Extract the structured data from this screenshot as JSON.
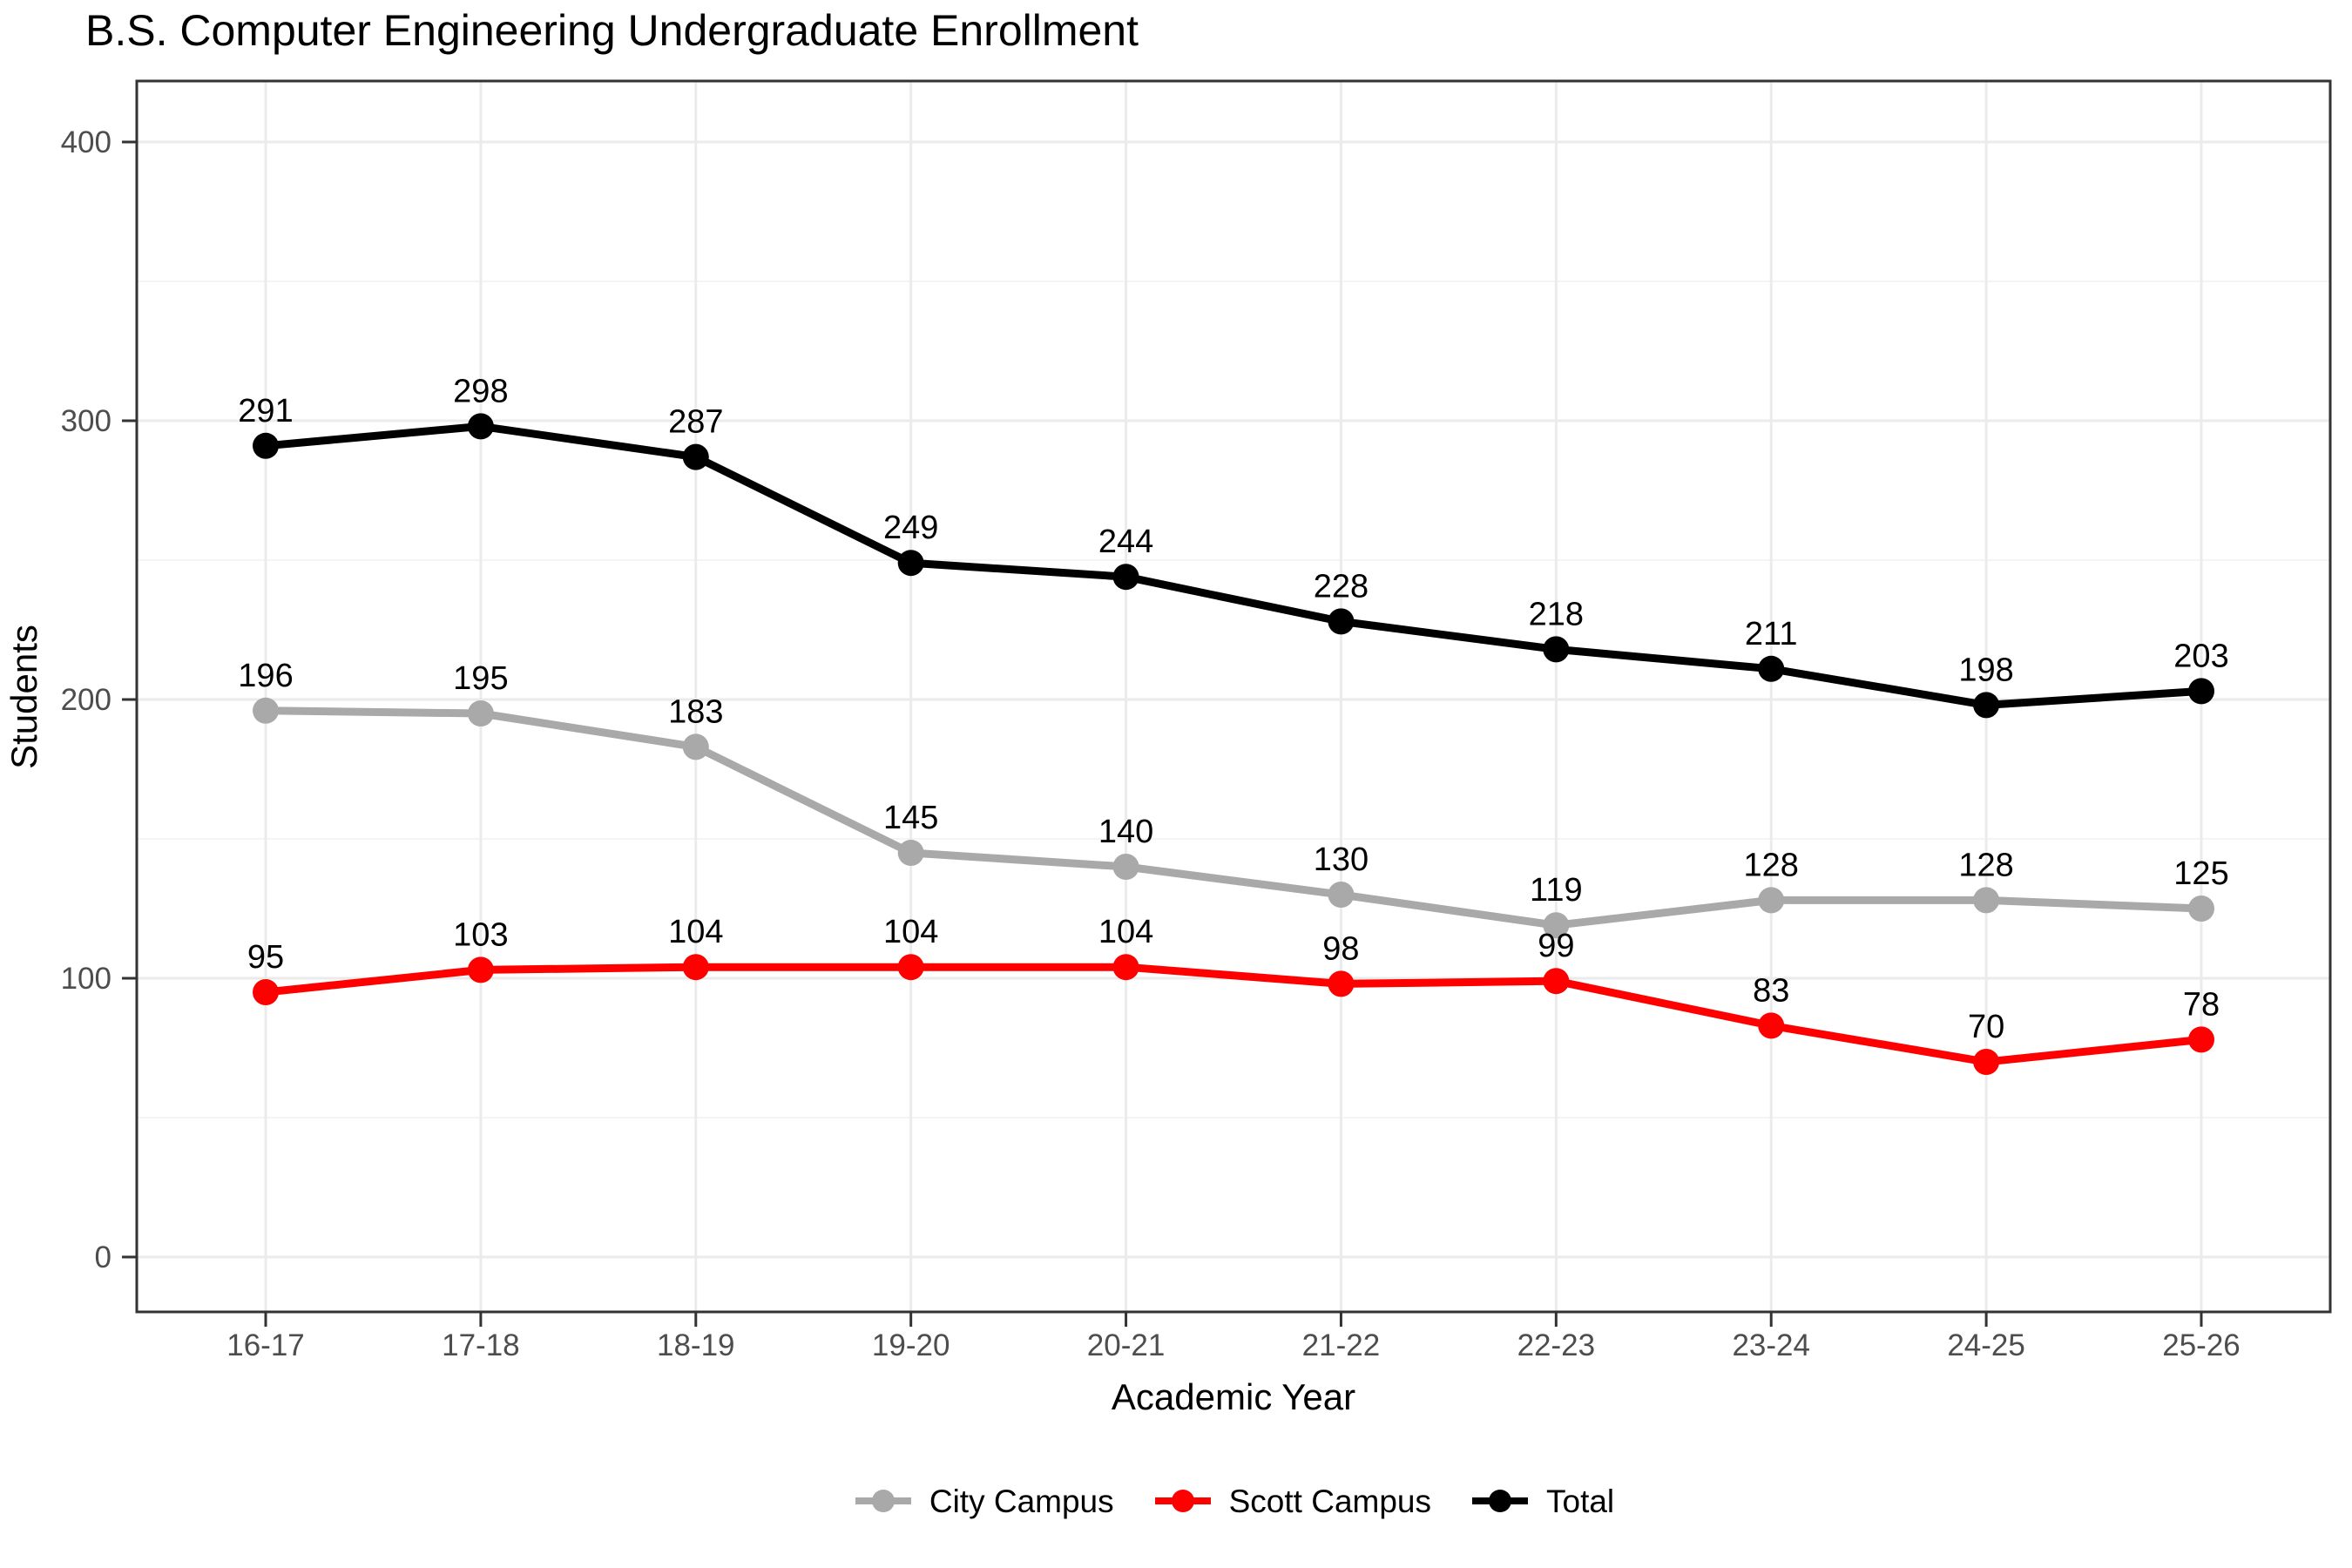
{
  "chart_data": {
    "type": "line",
    "title": "B.S. Computer Engineering Undergraduate Enrollment",
    "xlabel": "Academic Year",
    "ylabel": "Students",
    "categories": [
      "16-17",
      "17-18",
      "18-19",
      "19-20",
      "20-21",
      "21-22",
      "22-23",
      "23-24",
      "24-25",
      "25-26"
    ],
    "series": [
      {
        "name": "City Campus",
        "color": "#a9a9a9",
        "values": [
          196,
          195,
          183,
          145,
          140,
          130,
          119,
          128,
          128,
          125
        ]
      },
      {
        "name": "Scott Campus",
        "color": "#ff0000",
        "values": [
          95,
          103,
          104,
          104,
          104,
          98,
          99,
          83,
          70,
          78
        ]
      },
      {
        "name": "Total",
        "color": "#000000",
        "values": [
          291,
          298,
          287,
          249,
          244,
          228,
          218,
          211,
          198,
          203
        ]
      }
    ],
    "ylim": [
      0,
      400
    ],
    "yticks": [
      0,
      100,
      200,
      300,
      400
    ],
    "yticks_minor": [
      50,
      150,
      250,
      350
    ],
    "grid": true,
    "data_labels": true,
    "legend_position": "bottom",
    "colors": {
      "grid_major": "#ebebeb",
      "grid_minor": "#f4f4f4",
      "panel_border": "#333333",
      "tick_mark": "#333333",
      "tick_text": "#4d4d4d",
      "background": "#ffffff"
    }
  }
}
